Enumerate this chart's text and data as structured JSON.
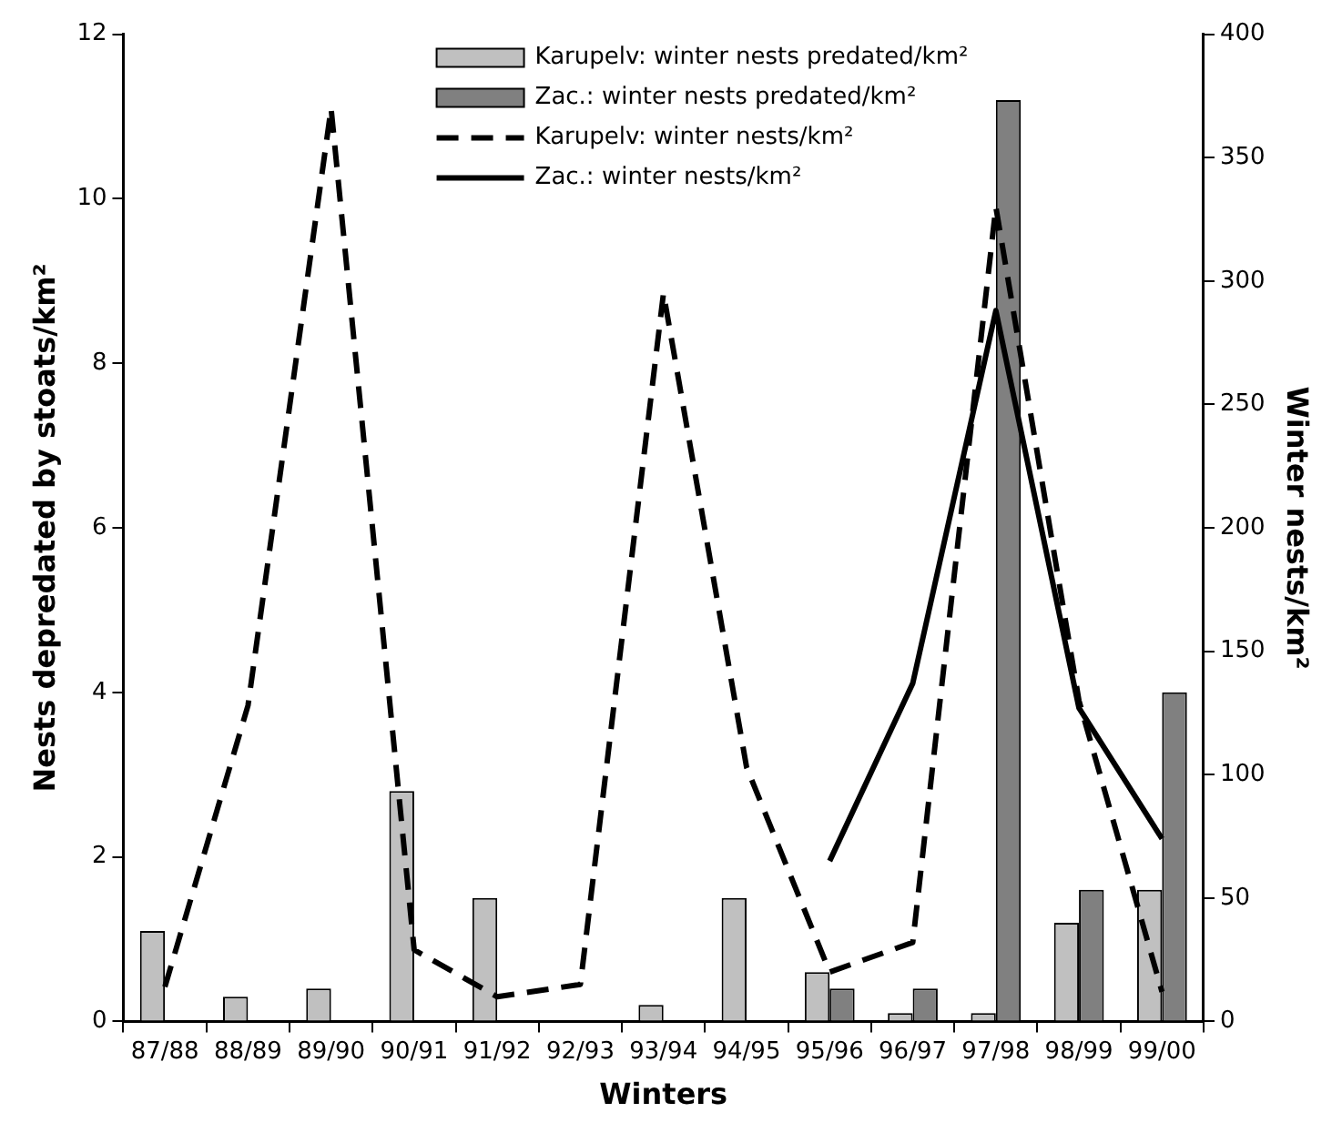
{
  "chart_data": {
    "type": "bar",
    "xlabel": "Winters",
    "ylabel": "Nests depredated by stoats/km²",
    "y2label": "Winter nests/km²",
    "categories": [
      "87/88",
      "88/89",
      "89/90",
      "90/91",
      "91/92",
      "92/93",
      "93/94",
      "94/95",
      "95/96",
      "96/97",
      "97/98",
      "98/99",
      "99/00"
    ],
    "series": [
      {
        "name": "Karupelv: winter nests predated/km²",
        "color": "#c0c0c0",
        "values": [
          1.1,
          0.3,
          0.4,
          2.8,
          1.5,
          null,
          0.2,
          1.5,
          0.6,
          0.1,
          0.1,
          1.2,
          1.6
        ]
      },
      {
        "name": "Zac.: winter nests predated/km²",
        "color": "#808080",
        "values": [
          null,
          null,
          null,
          null,
          null,
          null,
          null,
          null,
          0.4,
          0.4,
          11.2,
          1.6,
          4.0
        ]
      },
      {
        "name": "Karupelv: winter nests/km²",
        "type": "line",
        "axis": "y2",
        "line_style": "dashed",
        "color": "#000000",
        "values": [
          14,
          128,
          370,
          29,
          10,
          15,
          295,
          103,
          20,
          32,
          330,
          130,
          12
        ]
      },
      {
        "name": "Zac.: winter nests/km²",
        "type": "line",
        "axis": "y2",
        "line_style": "solid",
        "color": "#000000",
        "values": [
          null,
          null,
          null,
          null,
          null,
          null,
          null,
          null,
          65,
          137,
          288,
          127,
          74
        ]
      }
    ],
    "ylim": [
      0,
      12
    ],
    "yticks": [
      0,
      2,
      4,
      6,
      8,
      10,
      12
    ],
    "y2lim": [
      0,
      400
    ],
    "y2ticks": [
      0,
      50,
      100,
      150,
      200,
      250,
      300,
      350,
      400
    ],
    "grid": false,
    "legend": "top",
    "marker": "none"
  }
}
